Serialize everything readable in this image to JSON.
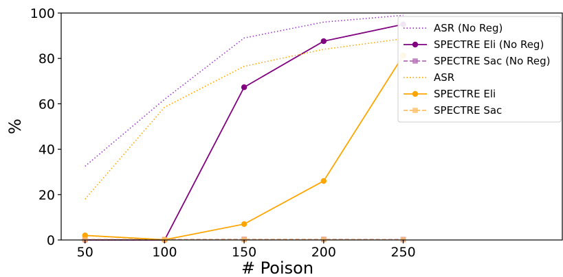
{
  "chart_data": {
    "type": "line",
    "title": "",
    "xlabel": "# Poison",
    "ylabel": "%",
    "x": [
      50,
      100,
      150,
      200,
      250
    ],
    "xlim": [
      35,
      350
    ],
    "ylim": [
      0,
      100
    ],
    "xticks": [
      "50",
      "100",
      "150",
      "200",
      "250"
    ],
    "yticks": [
      "0",
      "20",
      "40",
      "60",
      "80",
      "100"
    ],
    "grid": false,
    "legend_position": "top-right",
    "series": [
      {
        "name": "ASR (No Reg)",
        "values": [
          32.5,
          62.0,
          89.0,
          96.0,
          99.0
        ],
        "color": "#9933cc",
        "line_style": "dotted",
        "marker": "none"
      },
      {
        "name": "SPECTRE Eli (No Reg)",
        "values": [
          0.0,
          0.0,
          67.3,
          87.6,
          95.0
        ],
        "color": "#800080",
        "line_style": "solid",
        "marker": "circle"
      },
      {
        "name": "SPECTRE Sac (No Reg)",
        "values": [
          0.2,
          0.2,
          0.3,
          0.3,
          0.2
        ],
        "color": "#b36bb3",
        "line_style": "dashed",
        "marker": "square"
      },
      {
        "name": "ASR",
        "values": [
          18.0,
          58.5,
          76.5,
          84.0,
          88.7
        ],
        "color": "#ffa500",
        "line_style": "dotted",
        "marker": "none"
      },
      {
        "name": "SPECTRE Eli",
        "values": [
          2.0,
          0.1,
          7.0,
          26.0,
          81.3
        ],
        "color": "#ffa500",
        "line_style": "solid",
        "marker": "circle"
      },
      {
        "name": "SPECTRE Sac",
        "values": [
          0.1,
          0.1,
          0.2,
          0.2,
          0.1
        ],
        "color": "#ffbe66",
        "line_style": "dashed",
        "marker": "square"
      }
    ]
  }
}
